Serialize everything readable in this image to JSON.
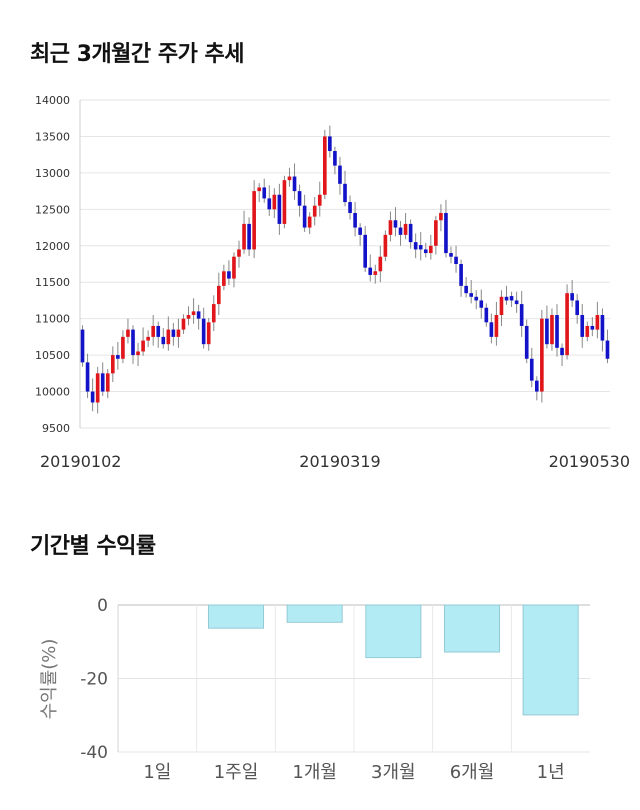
{
  "charts": {
    "candle_title": "최근 3개월간 주가 추세",
    "returns_title": "기간별 수익률"
  },
  "chart_data": [
    {
      "type": "candlestick",
      "title": "최근 3개월간 주가 추세",
      "ylim": [
        9500,
        14000
      ],
      "yticks": [
        9500,
        10000,
        10500,
        11000,
        11500,
        12000,
        12500,
        13000,
        13500,
        14000
      ],
      "xticks": [
        "20190102",
        "20190319",
        "20190530"
      ],
      "grid": true,
      "colors": {
        "up": "#e0161b",
        "down": "#1212c8",
        "wick": "#888888"
      },
      "closes": [
        10400,
        10000,
        9850,
        10250,
        10000,
        10250,
        10500,
        10450,
        10750,
        10850,
        10500,
        10550,
        10700,
        10750,
        10900,
        10750,
        10650,
        10850,
        10750,
        10850,
        11000,
        11050,
        11100,
        11000,
        10650,
        10950,
        11200,
        11450,
        11650,
        11550,
        11850,
        11950,
        12300,
        11950,
        12750,
        12800,
        12650,
        12500,
        12700,
        12300,
        12900,
        12950,
        12750,
        12550,
        12250,
        12400,
        12550,
        12700,
        13500,
        13300,
        13100,
        12850,
        12600,
        12450,
        12250,
        12150,
        11700,
        11600,
        11650,
        11850,
        12150,
        12350,
        12250,
        12150,
        12300,
        12050,
        11950,
        11950,
        11900,
        12000,
        12350,
        12450,
        11900,
        11850,
        11750,
        11450,
        11350,
        11300,
        11250,
        11150,
        10950,
        10750,
        11050,
        11300,
        11250,
        11250,
        11200,
        10900,
        10450,
        10150,
        10000,
        11000,
        10650,
        11050,
        10600,
        10500,
        11350,
        11250,
        11050,
        10750,
        10900,
        10850,
        11050,
        10700,
        10450
      ],
      "returns": {
        "type": "bar",
        "title": "기간별 수익률",
        "categories": [
          "1일",
          "1주일",
          "1개월",
          "3개월",
          "6개월",
          "1년"
        ],
        "values": [
          0.0,
          -6.3,
          -4.7,
          -14.3,
          -12.8,
          -29.9
        ],
        "ylabel": "수익률(%)",
        "ylim": [
          -40,
          0
        ],
        "yticks": [
          0,
          -20,
          -40
        ],
        "bar_color": "#b3ebf5",
        "bar_edge": "#93c9d4"
      }
    }
  ]
}
